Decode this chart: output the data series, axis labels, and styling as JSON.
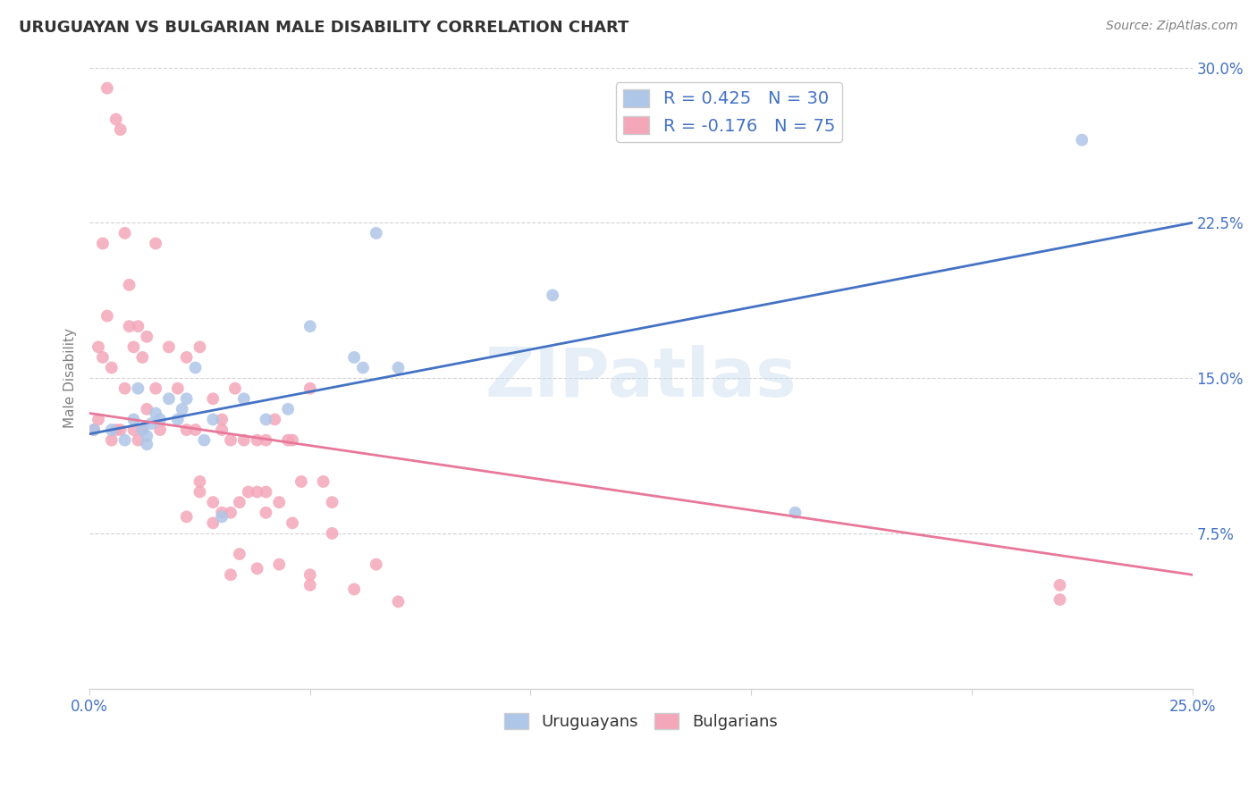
{
  "title": "URUGUAYAN VS BULGARIAN MALE DISABILITY CORRELATION CHART",
  "source": "Source: ZipAtlas.com",
  "ylabel": "Male Disability",
  "x_min": 0.0,
  "x_max": 0.25,
  "y_min": 0.0,
  "y_max": 0.3,
  "x_ticks": [
    0.0,
    0.05,
    0.1,
    0.15,
    0.2,
    0.25
  ],
  "x_tick_labels_show": [
    "0.0%",
    "",
    "",
    "",
    "",
    "25.0%"
  ],
  "y_ticks": [
    0.075,
    0.15,
    0.225,
    0.3
  ],
  "y_tick_labels": [
    "7.5%",
    "15.0%",
    "22.5%",
    "30.0%"
  ],
  "uruguayan_color": "#aec6e8",
  "bulgarian_color": "#f4a7b9",
  "uruguayan_line_color": "#4472c4",
  "bulgarian_line_color": "#e8789a",
  "uruguayan_R": 0.425,
  "uruguayan_N": 30,
  "bulgarian_R": -0.176,
  "bulgarian_N": 75,
  "legend_label_uruguayan": "Uruguayans",
  "legend_label_bulgarian": "Bulgarians",
  "watermark": "ZIPatlas",
  "uru_line_x0": 0.0,
  "uru_line_y0": 0.123,
  "uru_line_x1": 0.25,
  "uru_line_y1": 0.225,
  "bul_line_x0": 0.0,
  "bul_line_y0": 0.133,
  "bul_line_x1": 0.25,
  "bul_line_y1": 0.055,
  "uruguayan_x": [
    0.001,
    0.005,
    0.008,
    0.01,
    0.011,
    0.012,
    0.013,
    0.013,
    0.014,
    0.015,
    0.016,
    0.018,
    0.02,
    0.021,
    0.022,
    0.024,
    0.026,
    0.028,
    0.03,
    0.035,
    0.04,
    0.045,
    0.05,
    0.06,
    0.065,
    0.07,
    0.105,
    0.16,
    0.062,
    0.225
  ],
  "uruguayan_y": [
    0.125,
    0.125,
    0.12,
    0.13,
    0.145,
    0.125,
    0.118,
    0.122,
    0.128,
    0.133,
    0.13,
    0.14,
    0.13,
    0.135,
    0.14,
    0.155,
    0.12,
    0.13,
    0.083,
    0.14,
    0.13,
    0.135,
    0.175,
    0.16,
    0.22,
    0.155,
    0.19,
    0.085,
    0.155,
    0.265
  ],
  "bulgarian_x": [
    0.001,
    0.002,
    0.002,
    0.003,
    0.003,
    0.004,
    0.004,
    0.005,
    0.005,
    0.006,
    0.006,
    0.007,
    0.007,
    0.008,
    0.008,
    0.009,
    0.009,
    0.01,
    0.01,
    0.011,
    0.011,
    0.012,
    0.012,
    0.013,
    0.013,
    0.015,
    0.015,
    0.016,
    0.018,
    0.02,
    0.022,
    0.024,
    0.025,
    0.028,
    0.03,
    0.032,
    0.033,
    0.035,
    0.036,
    0.038,
    0.04,
    0.042,
    0.045,
    0.048,
    0.05,
    0.053,
    0.055,
    0.022,
    0.025,
    0.028,
    0.03,
    0.032,
    0.034,
    0.038,
    0.04,
    0.043,
    0.046,
    0.022,
    0.025,
    0.028,
    0.03,
    0.032,
    0.034,
    0.038,
    0.04,
    0.043,
    0.046,
    0.05,
    0.05,
    0.055,
    0.06,
    0.065,
    0.07,
    0.22,
    0.22
  ],
  "bulgarian_y": [
    0.125,
    0.13,
    0.165,
    0.16,
    0.215,
    0.18,
    0.29,
    0.12,
    0.155,
    0.125,
    0.275,
    0.125,
    0.27,
    0.22,
    0.145,
    0.175,
    0.195,
    0.125,
    0.165,
    0.12,
    0.175,
    0.125,
    0.16,
    0.135,
    0.17,
    0.145,
    0.215,
    0.125,
    0.165,
    0.145,
    0.16,
    0.125,
    0.165,
    0.14,
    0.125,
    0.12,
    0.145,
    0.12,
    0.095,
    0.12,
    0.095,
    0.13,
    0.12,
    0.1,
    0.145,
    0.1,
    0.09,
    0.125,
    0.095,
    0.09,
    0.13,
    0.085,
    0.09,
    0.095,
    0.12,
    0.09,
    0.12,
    0.083,
    0.1,
    0.08,
    0.085,
    0.055,
    0.065,
    0.058,
    0.085,
    0.06,
    0.08,
    0.055,
    0.05,
    0.075,
    0.048,
    0.06,
    0.042,
    0.05,
    0.043
  ]
}
